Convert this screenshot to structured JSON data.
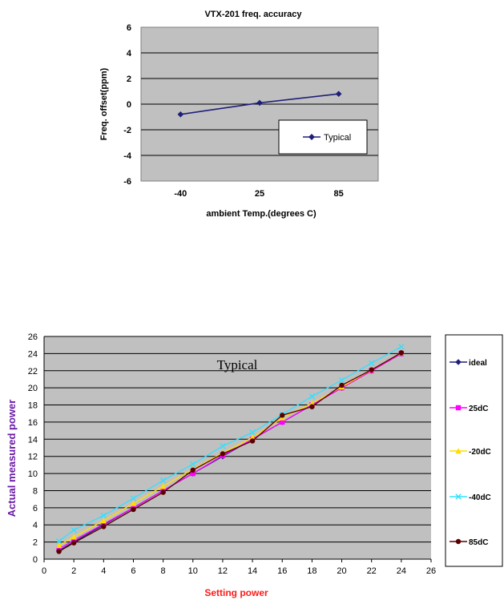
{
  "chart_data": [
    {
      "type": "line",
      "title": "VTX-201 freq. accuracy",
      "xlabel": "ambient Temp.(degrees C)",
      "ylabel": "Freq. offset(ppm)",
      "categories": [
        "-40",
        "25",
        "85"
      ],
      "ylim": [
        -6,
        6
      ],
      "yticks": [
        6,
        4,
        2,
        0,
        -2,
        -4,
        -6
      ],
      "grid": true,
      "legend": "inside-lower-right",
      "series": [
        {
          "name": "Typical",
          "color": "#1f1f7a",
          "marker": "diamond",
          "values": [
            -0.8,
            0.1,
            0.8
          ]
        }
      ]
    },
    {
      "type": "line",
      "title": "",
      "annotation": "Typical",
      "xlabel": "Setting  power",
      "ylabel": "Actual  measured power",
      "xlim": [
        0,
        26
      ],
      "ylim": [
        0,
        26
      ],
      "xticks": [
        0,
        2,
        4,
        6,
        8,
        10,
        12,
        14,
        16,
        18,
        20,
        22,
        24,
        26
      ],
      "yticks": [
        0,
        2,
        4,
        6,
        8,
        10,
        12,
        14,
        16,
        18,
        20,
        22,
        24,
        26
      ],
      "x": [
        1,
        2,
        4,
        6,
        8,
        10,
        12,
        14,
        16,
        18,
        20,
        22,
        24
      ],
      "grid": true,
      "legend": "right",
      "series": [
        {
          "name": "ideal",
          "color": "#1f1f7a",
          "marker": "diamond",
          "values": [
            1,
            2,
            4,
            6,
            8,
            10,
            12,
            14,
            16,
            18,
            20,
            22,
            24
          ]
        },
        {
          "name": "25dC",
          "color": "#ff00ff",
          "marker": "square",
          "values": [
            1.2,
            2.2,
            4.1,
            6.0,
            8.0,
            10.0,
            12.1,
            14.0,
            16.0,
            18.0,
            20.0,
            22.0,
            24.0
          ]
        },
        {
          "name": "-20dC",
          "color": "#ffdd00",
          "marker": "triangle",
          "values": [
            1.6,
            2.6,
            4.5,
            6.5,
            8.5,
            10.5,
            12.4,
            14.2,
            16.5,
            18.2,
            20.1,
            22.1,
            24.1
          ]
        },
        {
          "name": "-40dC",
          "color": "#33e0ff",
          "marker": "x",
          "values": [
            2.1,
            3.4,
            5.1,
            7.1,
            9.2,
            11.1,
            13.2,
            14.8,
            16.9,
            19.0,
            20.9,
            22.9,
            24.8
          ]
        },
        {
          "name": "85dC",
          "color": "#5a0000",
          "marker": "circle",
          "values": [
            0.9,
            1.9,
            3.8,
            5.8,
            7.8,
            10.4,
            12.3,
            13.8,
            16.8,
            17.8,
            20.3,
            22.1,
            24.1
          ]
        }
      ]
    }
  ]
}
